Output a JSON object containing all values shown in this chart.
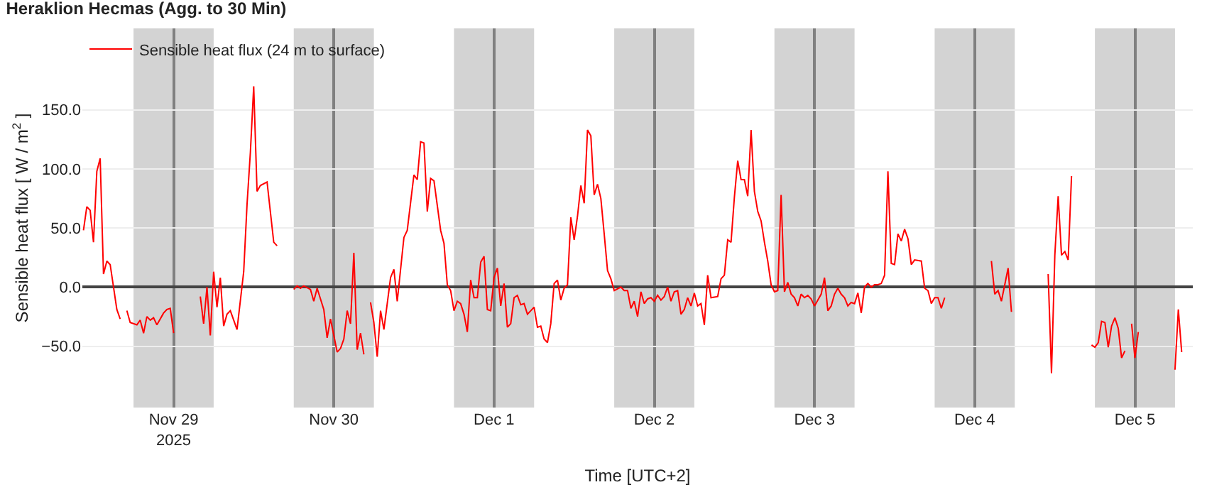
{
  "chart_data": {
    "type": "line",
    "title": "Heraklion Hecmas (Agg. to 30 Min)",
    "xlabel": "Time [UTC+2]",
    "ylabel": "Sensible heat flux [ W / m$^{2}$ ]",
    "xlim": [
      "2025-11-28T10:20",
      "2025-12-05T08:40"
    ],
    "xticks": [
      {
        "value": "2025-11-29",
        "label": "Nov 29\n2025"
      },
      {
        "value": "2025-11-30",
        "label": "Nov 30"
      },
      {
        "value": "2025-12-01",
        "label": "Dec 1"
      },
      {
        "value": "2025-12-02",
        "label": "Dec 2"
      },
      {
        "value": "2025-12-03",
        "label": "Dec 3"
      },
      {
        "value": "2025-12-04",
        "label": "Dec 4"
      },
      {
        "value": "2025-12-05",
        "label": "Dec 5"
      }
    ],
    "ylim": [
      -102,
      219
    ],
    "yticks": [
      {
        "value": -50,
        "label": "−50.0"
      },
      {
        "value": 0,
        "label": "0.0"
      },
      {
        "value": 50,
        "label": "50.0"
      },
      {
        "value": 100,
        "label": "100.0"
      },
      {
        "value": 150,
        "label": "150.0"
      }
    ],
    "grid": true,
    "legend": "top left",
    "marker": "none",
    "line_style": "solid",
    "bands": [
      {
        "axis": "x",
        "from": "2025-11-28T18:00",
        "to": "2025-11-29T06:00",
        "color": "#d3d3d3"
      },
      {
        "axis": "x",
        "from": "2025-11-29T18:00",
        "to": "2025-11-30T06:00",
        "color": "#d3d3d3"
      },
      {
        "axis": "x",
        "from": "2025-11-30T18:00",
        "to": "2025-12-01T06:00",
        "color": "#d3d3d3"
      },
      {
        "axis": "x",
        "from": "2025-12-01T18:00",
        "to": "2025-12-02T06:00",
        "color": "#d3d3d3"
      },
      {
        "axis": "x",
        "from": "2025-12-02T18:00",
        "to": "2025-12-03T06:00",
        "color": "#d3d3d3"
      },
      {
        "axis": "x",
        "from": "2025-12-03T18:00",
        "to": "2025-12-04T06:00",
        "color": "#d3d3d3"
      },
      {
        "axis": "x",
        "from": "2025-12-04T18:00",
        "to": "2025-12-05T06:00",
        "color": "#d3d3d3"
      }
    ],
    "series": [
      {
        "name": "Sensible heat flux (24 m to surface)",
        "color": "#ff0000",
        "x": [
          "2025-11-28T10:30",
          "2025-11-28T11:00",
          "2025-11-28T11:30",
          "2025-11-28T12:00",
          "2025-11-28T12:30",
          "2025-11-28T13:00",
          "2025-11-28T13:30",
          "2025-11-28T14:00",
          "2025-11-28T14:30",
          "2025-11-28T15:00",
          "2025-11-28T15:30",
          "2025-11-28T16:00",
          "2025-11-28T16:30",
          "2025-11-28T17:00",
          "2025-11-28T17:30",
          "2025-11-28T18:30",
          "2025-11-28T19:00",
          "2025-11-28T19:30",
          "2025-11-28T20:00",
          "2025-11-28T20:30",
          "2025-11-28T21:00",
          "2025-11-28T21:30",
          "2025-11-28T22:30",
          "2025-11-28T23:00",
          "2025-11-28T23:30",
          "2025-11-29T00:00",
          "2025-11-29T02:00",
          "2025-11-29T04:00",
          "2025-11-29T04:30",
          "2025-11-29T05:00",
          "2025-11-29T05:30",
          "2025-11-29T06:00",
          "2025-11-29T06:30",
          "2025-11-29T07:00",
          "2025-11-29T07:30",
          "2025-11-29T08:00",
          "2025-11-29T08:30",
          "2025-11-29T09:00",
          "2025-11-29T09:30",
          "2025-11-29T10:30",
          "2025-11-29T11:00",
          "2025-11-29T11:30",
          "2025-11-29T12:00",
          "2025-11-29T12:30",
          "2025-11-29T13:00",
          "2025-11-29T14:00",
          "2025-11-29T15:00",
          "2025-11-29T15:30",
          "2025-11-29T16:30",
          "2025-11-29T18:00",
          "2025-11-29T18:30",
          "2025-11-29T19:00",
          "2025-11-29T19:30",
          "2025-11-29T20:30",
          "2025-11-29T21:00",
          "2025-11-29T21:30",
          "2025-11-29T22:30",
          "2025-11-29T23:00",
          "2025-11-29T23:30",
          "2025-11-30T00:30",
          "2025-11-30T01:00",
          "2025-11-30T01:30",
          "2025-11-30T02:00",
          "2025-11-30T02:30",
          "2025-11-30T03:00",
          "2025-11-30T03:30",
          "2025-11-30T04:00",
          "2025-11-30T04:30",
          "2025-11-30T05:00",
          "2025-11-30T05:30",
          "2025-11-30T06:00",
          "2025-11-30T06:30",
          "2025-11-30T07:00",
          "2025-11-30T07:30",
          "2025-11-30T08:00",
          "2025-11-30T08:30",
          "2025-11-30T09:00",
          "2025-11-30T09:30",
          "2025-11-30T10:30",
          "2025-11-30T11:00",
          "2025-11-30T12:00",
          "2025-11-30T12:30",
          "2025-11-30T13:00",
          "2025-11-30T13:30",
          "2025-11-30T14:00",
          "2025-11-30T14:30",
          "2025-11-30T15:00",
          "2025-11-30T16:00",
          "2025-11-30T16:30",
          "2025-11-30T17:00",
          "2025-11-30T17:30",
          "2025-11-30T18:00",
          "2025-11-30T18:30",
          "2025-11-30T19:00",
          "2025-11-30T19:30",
          "2025-11-30T20:00",
          "2025-11-30T20:30",
          "2025-11-30T21:00",
          "2025-11-30T21:30",
          "2025-11-30T22:00",
          "2025-11-30T22:30",
          "2025-11-30T23:00",
          "2025-11-30T23:30",
          "2025-12-01T00:00",
          "2025-12-01T00:30",
          "2025-12-01T01:00",
          "2025-12-01T01:30",
          "2025-12-01T02:00",
          "2025-12-01T02:30",
          "2025-12-01T03:00",
          "2025-12-01T03:30",
          "2025-12-01T04:00",
          "2025-12-01T04:30",
          "2025-12-01T05:00",
          "2025-12-01T05:30",
          "2025-12-01T06:00",
          "2025-12-01T06:30",
          "2025-12-01T07:00",
          "2025-12-01T07:30",
          "2025-12-01T08:00",
          "2025-12-01T08:30",
          "2025-12-01T09:00",
          "2025-12-01T09:30",
          "2025-12-01T10:00",
          "2025-12-01T10:30",
          "2025-12-01T11:00",
          "2025-12-01T11:30",
          "2025-12-01T12:00",
          "2025-12-01T12:30",
          "2025-12-01T13:00",
          "2025-12-01T13:30",
          "2025-12-01T14:00",
          "2025-12-01T14:30",
          "2025-12-01T15:00",
          "2025-12-01T15:30",
          "2025-12-01T16:00",
          "2025-12-01T16:30",
          "2025-12-01T17:00",
          "2025-12-01T17:30",
          "2025-12-01T18:00",
          "2025-12-01T19:00",
          "2025-12-01T19:30",
          "2025-12-01T20:00",
          "2025-12-01T20:30",
          "2025-12-01T21:00",
          "2025-12-01T21:30",
          "2025-12-01T22:00",
          "2025-12-01T22:30",
          "2025-12-01T23:00",
          "2025-12-01T23:30",
          "2025-12-02T00:00",
          "2025-12-02T00:30",
          "2025-12-02T01:00",
          "2025-12-02T01:30",
          "2025-12-02T02:00",
          "2025-12-02T02:30",
          "2025-12-02T03:00",
          "2025-12-02T03:30",
          "2025-12-02T04:00",
          "2025-12-02T04:30",
          "2025-12-02T05:00",
          "2025-12-02T05:30",
          "2025-12-02T06:00",
          "2025-12-02T06:30",
          "2025-12-02T07:00",
          "2025-12-02T07:30",
          "2025-12-02T08:00",
          "2025-12-02T08:30",
          "2025-12-02T09:30",
          "2025-12-02T10:00",
          "2025-12-02T10:30",
          "2025-12-02T11:00",
          "2025-12-02T11:30",
          "2025-12-02T12:00",
          "2025-12-02T12:30",
          "2025-12-02T13:00",
          "2025-12-02T13:30",
          "2025-12-02T14:00",
          "2025-12-02T14:30",
          "2025-12-02T15:00",
          "2025-12-02T15:30",
          "2025-12-02T16:00",
          "2025-12-02T16:30",
          "2025-12-02T17:00",
          "2025-12-02T17:30",
          "2025-12-02T18:00",
          "2025-12-02T18:30",
          "2025-12-02T19:00",
          "2025-12-02T19:30",
          "2025-12-02T20:00",
          "2025-12-02T20:30",
          "2025-12-02T21:00",
          "2025-12-02T21:30",
          "2025-12-02T22:00",
          "2025-12-02T22:30",
          "2025-12-02T23:00",
          "2025-12-02T23:30",
          "2025-12-03T00:00",
          "2025-12-03T01:00",
          "2025-12-03T01:30",
          "2025-12-03T02:00",
          "2025-12-03T02:30",
          "2025-12-03T03:00",
          "2025-12-03T03:30",
          "2025-12-03T04:00",
          "2025-12-03T04:30",
          "2025-12-03T05:00",
          "2025-12-03T05:30",
          "2025-12-03T06:00",
          "2025-12-03T06:30",
          "2025-12-03T07:00",
          "2025-12-03T07:30",
          "2025-12-03T08:00",
          "2025-12-03T08:30",
          "2025-12-03T09:00",
          "2025-12-03T09:30",
          "2025-12-03T10:00",
          "2025-12-03T10:30",
          "2025-12-03T11:00",
          "2025-12-03T11:30",
          "2025-12-03T12:00",
          "2025-12-03T12:30",
          "2025-12-03T13:00",
          "2025-12-03T13:30",
          "2025-12-03T14:00",
          "2025-12-03T14:30",
          "2025-12-03T15:00",
          "2025-12-03T16:00",
          "2025-12-03T16:30",
          "2025-12-03T17:00",
          "2025-12-03T17:30",
          "2025-12-03T18:00",
          "2025-12-03T18:30",
          "2025-12-03T19:00",
          "2025-12-03T19:30",
          "2025-12-03T23:00",
          "2025-12-04T02:30",
          "2025-12-04T03:00",
          "2025-12-04T03:30",
          "2025-12-04T04:00",
          "2025-12-04T05:00",
          "2025-12-04T05:30",
          "2025-12-04T08:00",
          "2025-12-04T11:00",
          "2025-12-04T11:30",
          "2025-12-04T12:00",
          "2025-12-04T12:30",
          "2025-12-04T13:00",
          "2025-12-04T13:30",
          "2025-12-04T14:00",
          "2025-12-04T14:30",
          "2025-12-04T16:00",
          "2025-12-04T17:30",
          "2025-12-04T18:00",
          "2025-12-04T18:30",
          "2025-12-04T19:00",
          "2025-12-04T19:30",
          "2025-12-04T20:00",
          "2025-12-04T20:30",
          "2025-12-04T21:00",
          "2025-12-04T21:30",
          "2025-12-04T22:00",
          "2025-12-04T22:30",
          "2025-12-04T23:00",
          "2025-12-04T23:30",
          "2025-12-05T00:00",
          "2025-12-05T00:30",
          "2025-12-05T03:00",
          "2025-12-05T06:00",
          "2025-12-05T06:30",
          "2025-12-05T07:00"
        ],
        "values": [
          48,
          68,
          65,
          38,
          98,
          109,
          11,
          22,
          19,
          0,
          -19,
          -27,
          null,
          -20,
          -30,
          -32,
          -28,
          -39,
          -25,
          -28,
          -26,
          -32,
          -22,
          -19,
          -18,
          -39,
          null,
          -8,
          -31,
          0,
          -41,
          13,
          -17,
          8,
          -33,
          -23,
          -20,
          -28,
          -36,
          13,
          70,
          114,
          170,
          81,
          86,
          89,
          38,
          35,
          null,
          -2,
          1,
          -1,
          1,
          -2,
          -12,
          -1,
          -19,
          -43,
          -27,
          -55,
          -52,
          -44,
          -20,
          -31,
          29,
          -53,
          -39,
          -57,
          null,
          -13,
          -30,
          -59,
          -20,
          -36,
          -14,
          8,
          15,
          -12,
          42,
          48,
          95,
          91,
          123,
          122,
          64,
          92,
          90,
          48,
          37,
          2,
          -3,
          -20,
          -12,
          -14,
          -23,
          -38,
          6,
          -9,
          -9,
          21,
          26,
          -19,
          -20,
          8,
          16,
          -16,
          3,
          -34,
          -31,
          -9,
          -7,
          -15,
          -14,
          -23,
          -20,
          -17,
          -34,
          -33,
          -44,
          -47,
          -31,
          3,
          6,
          -11,
          -1,
          2,
          59,
          40,
          60,
          86,
          71,
          133,
          128,
          78,
          87,
          75,
          45,
          14,
          7,
          -3,
          0,
          -3,
          -3,
          -18,
          -12,
          -25,
          -4,
          -14,
          -10,
          -9,
          -12,
          -7,
          -11,
          -8,
          0,
          -12,
          -4,
          -3,
          -23,
          -19,
          -9,
          -16,
          -5,
          -16,
          -14,
          -32,
          10,
          -9,
          -8,
          7,
          10,
          40,
          38,
          76,
          107,
          91,
          91,
          77,
          133,
          81,
          64,
          56,
          38,
          22,
          2,
          -4,
          -3,
          78,
          -4,
          4,
          -6,
          -9,
          -16,
          -6,
          -9,
          -7,
          -10,
          -16,
          -6,
          8,
          -20,
          -16,
          -6,
          -1,
          -6,
          -9,
          -16,
          -13,
          -14,
          -5,
          -22,
          0,
          3,
          0,
          2,
          2,
          3,
          10,
          98,
          20,
          19,
          45,
          39,
          49,
          41,
          19,
          23,
          22,
          -1,
          -3,
          -14,
          -9,
          -9,
          -18,
          -9,
          null,
          22,
          -6,
          -3,
          -12,
          16,
          -21,
          null,
          11,
          -73,
          27,
          77,
          27,
          30,
          23,
          94,
          null,
          -49,
          -51,
          -47,
          -29,
          -30,
          -51,
          -33,
          -26,
          -35,
          -60,
          -54,
          null,
          -31,
          -60,
          -38,
          null,
          -70,
          -19,
          -55
        ]
      }
    ]
  }
}
